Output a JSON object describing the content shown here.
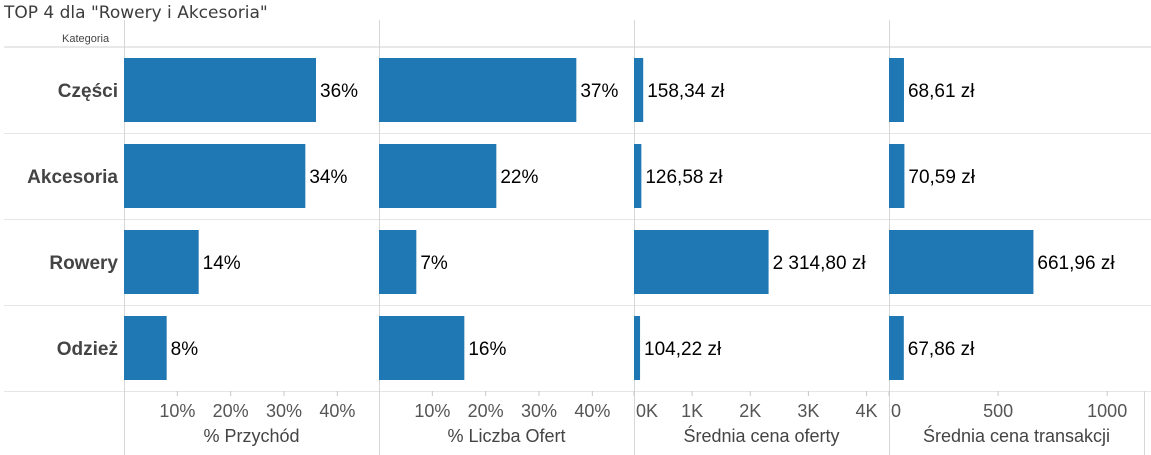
{
  "title": "TOP 4 dla \"Rowery i Akcesoria\"",
  "row_header": "Kategoria",
  "colors": {
    "bar": "#1f77b4",
    "grid": "#e6e6e6",
    "text": "#444444"
  },
  "chart_data": {
    "type": "bar",
    "orientation": "horizontal",
    "categories": [
      "Części",
      "Akcesoria",
      "Rowery",
      "Odzież"
    ],
    "panels": [
      {
        "id": "przychod",
        "xlabel": "% Przychód",
        "values": [
          36,
          34,
          14,
          8
        ],
        "labels": [
          "36%",
          "34%",
          "14%",
          "8%"
        ],
        "xlim": [
          0,
          45
        ],
        "ticks": [
          10,
          20,
          30,
          40
        ],
        "tick_labels": [
          "10%",
          "20%",
          "30%",
          "40%"
        ]
      },
      {
        "id": "liczba-ofert",
        "xlabel": "% Liczba Ofert",
        "values": [
          37,
          22,
          7,
          16
        ],
        "labels": [
          "37%",
          "22%",
          "7%",
          "16%"
        ],
        "xlim": [
          0,
          45
        ],
        "ticks": [
          10,
          20,
          30,
          40
        ],
        "tick_labels": [
          "10%",
          "20%",
          "30%",
          "40%"
        ]
      },
      {
        "id": "cena-oferty",
        "xlabel": "Średnia cena oferty",
        "values": [
          158.34,
          126.58,
          2314.8,
          104.22
        ],
        "labels": [
          "158,34 zł",
          "126,58 zł",
          "2 314,80 zł",
          "104,22 zł"
        ],
        "xlim": [
          0,
          4300
        ],
        "ticks": [
          0,
          1000,
          2000,
          3000,
          4000
        ],
        "tick_labels": [
          "0K",
          "1K",
          "2K",
          "3K",
          "4K"
        ]
      },
      {
        "id": "cena-transakcji",
        "xlabel": "Średnia cena transakcji",
        "values": [
          68.61,
          70.59,
          661.96,
          67.86
        ],
        "labels": [
          "68,61 zł",
          "70,59 zł",
          "661,96 zł",
          "67,86 zł"
        ],
        "xlim": [
          0,
          1100
        ],
        "ticks": [
          0,
          500,
          1000
        ],
        "tick_labels": [
          "0",
          "500",
          "1000"
        ]
      }
    ]
  }
}
